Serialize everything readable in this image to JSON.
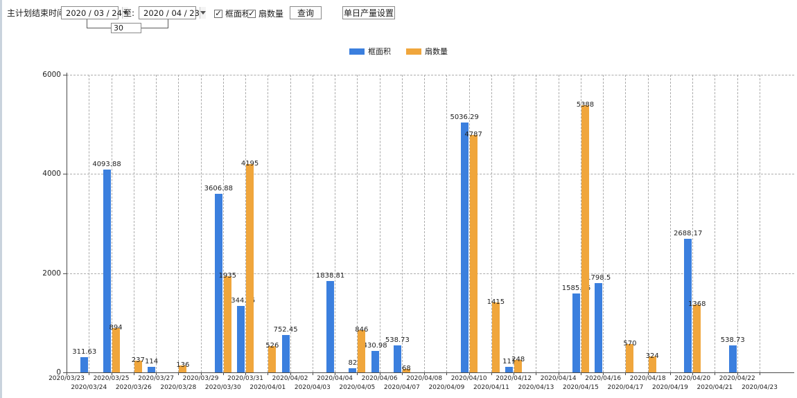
{
  "toolbar": {
    "plan_end_label": "主计划结束时间:",
    "date_from": "2020 / 03 / 24",
    "to_label": "至:",
    "date_to": "2020 / 04 / 23",
    "interval_days": "30",
    "checkbox_area_label": "框面积",
    "checkbox_area_checked": "✓",
    "checkbox_fans_label": "扇数量",
    "checkbox_fans_checked": "✓",
    "query_button": "查询",
    "daily_output_button": "单日产量设置"
  },
  "legend": [
    {
      "label": "框面积",
      "color": "#3B7FDE"
    },
    {
      "label": "扇数量",
      "color": "#F0A63C"
    }
  ],
  "chart_data": {
    "type": "bar",
    "title": "",
    "xlabel": "",
    "ylabel": "",
    "ylim": [
      0,
      6000
    ],
    "yticks": [
      0,
      2000,
      4000,
      6000
    ],
    "grid": "dashed",
    "legend_position": "top",
    "categories": [
      "2020/03/23",
      "2020/03/24",
      "2020/03/25",
      "2020/03/26",
      "2020/03/27",
      "2020/03/28",
      "2020/03/29",
      "2020/03/30",
      "2020/03/31",
      "2020/04/01",
      "2020/04/02",
      "2020/04/03",
      "2020/04/04",
      "2020/04/05",
      "2020/04/06",
      "2020/04/07",
      "2020/04/08",
      "2020/04/09",
      "2020/04/10",
      "2020/04/11",
      "2020/04/12",
      "2020/04/13",
      "2020/04/14",
      "2020/04/15",
      "2020/04/16",
      "2020/04/17",
      "2020/04/18",
      "2020/04/19",
      "2020/04/20",
      "2020/04/21",
      "2020/04/22",
      "2020/04/23"
    ],
    "series": [
      {
        "name": "框面积",
        "color": "#3B7FDE",
        "values": [
          null,
          311.63,
          4093.88,
          null,
          114,
          null,
          null,
          3606.88,
          1344.95,
          null,
          752.45,
          null,
          1838.81,
          82,
          430.98,
          538.73,
          null,
          null,
          5036.29,
          null,
          111,
          null,
          null,
          1585.96,
          1798.5,
          null,
          null,
          null,
          2688.17,
          null,
          538.73,
          null
        ]
      },
      {
        "name": "扇数量",
        "color": "#F0A63C",
        "values": [
          null,
          null,
          894,
          237,
          null,
          136,
          null,
          1935,
          4195,
          526,
          null,
          null,
          null,
          846,
          null,
          68,
          null,
          null,
          4787,
          1415,
          248,
          null,
          null,
          5388,
          null,
          570,
          324,
          null,
          1368,
          null,
          null,
          null
        ]
      }
    ]
  }
}
